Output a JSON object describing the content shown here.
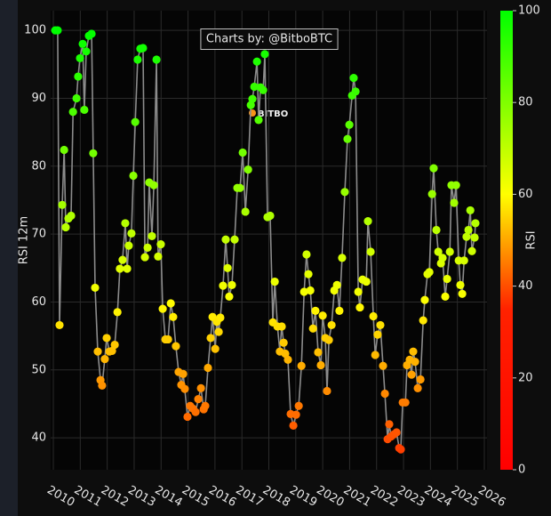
{
  "chart_data": {
    "type": "line",
    "y_label": "RSI 12m",
    "annotation": "Charts by: @BitboBTC",
    "watermark": "BITBO",
    "line_color": "#8c8c8c",
    "colorbar_title": "RSI",
    "clim": [
      0,
      100
    ],
    "colorbar_ticks": [
      0,
      20,
      40,
      60,
      80,
      100
    ],
    "colorscale": [
      [
        0,
        "#ff0000"
      ],
      [
        0.35,
        "#ff2200"
      ],
      [
        0.6,
        "#ffff00"
      ],
      [
        1,
        "#00ff00"
      ]
    ],
    "grid": true,
    "xlim": [
      2009.9,
      2026.1
    ],
    "xticks": [
      2010,
      2011,
      2012,
      2013,
      2014,
      2015,
      2016,
      2017,
      2018,
      2019,
      2020,
      2021,
      2022,
      2023,
      2024,
      2025,
      2026
    ],
    "ylim": [
      35.3,
      102.9
    ],
    "yticks": [
      40,
      50,
      60,
      70,
      80,
      90,
      100
    ],
    "x": [
      2010.07,
      2010.16,
      2010.23,
      2010.33,
      2010.4,
      2010.46,
      2010.56,
      2010.66,
      2010.73,
      2010.86,
      2010.92,
      2010.99,
      2011.09,
      2011.15,
      2011.22,
      2011.32,
      2011.42,
      2011.48,
      2011.55,
      2011.65,
      2011.75,
      2011.81,
      2011.91,
      2011.98,
      2012.08,
      2012.18,
      2012.28,
      2012.38,
      2012.47,
      2012.57,
      2012.67,
      2012.74,
      2012.8,
      2012.9,
      2012.97,
      2013.04,
      2013.13,
      2013.23,
      2013.33,
      2013.4,
      2013.5,
      2013.56,
      2013.66,
      2013.73,
      2013.83,
      2013.89,
      2013.99,
      2014.06,
      2014.16,
      2014.26,
      2014.36,
      2014.45,
      2014.55,
      2014.65,
      2014.75,
      2014.82,
      2014.88,
      2014.98,
      2015.08,
      2015.18,
      2015.28,
      2015.38,
      2015.48,
      2015.58,
      2015.64,
      2015.74,
      2015.84,
      2015.91,
      2016.01,
      2016.07,
      2016.14,
      2016.2,
      2016.3,
      2016.4,
      2016.47,
      2016.53,
      2016.63,
      2016.73,
      2016.83,
      2016.93,
      2017.03,
      2017.13,
      2017.23,
      2017.33,
      2017.39,
      2017.46,
      2017.56,
      2017.62,
      2017.69,
      2017.79,
      2017.85,
      2017.95,
      2018.05,
      2018.15,
      2018.22,
      2018.32,
      2018.41,
      2018.48,
      2018.55,
      2018.61,
      2018.71,
      2018.81,
      2018.91,
      2019.01,
      2019.11,
      2019.21,
      2019.31,
      2019.4,
      2019.47,
      2019.54,
      2019.64,
      2019.73,
      2019.83,
      2019.93,
      2020.0,
      2020.1,
      2020.16,
      2020.23,
      2020.33,
      2020.43,
      2020.53,
      2020.62,
      2020.72,
      2020.82,
      2020.92,
      2020.99,
      2021.09,
      2021.15,
      2021.22,
      2021.32,
      2021.38,
      2021.48,
      2021.62,
      2021.68,
      2021.78,
      2021.88,
      2021.95,
      2022.04,
      2022.14,
      2022.24,
      2022.31,
      2022.41,
      2022.47,
      2022.54,
      2022.64,
      2022.74,
      2022.84,
      2022.9,
      2022.97,
      2023.07,
      2023.13,
      2023.23,
      2023.3,
      2023.36,
      2023.43,
      2023.53,
      2023.63,
      2023.73,
      2023.79,
      2023.89,
      2023.96,
      2024.06,
      2024.12,
      2024.22,
      2024.29,
      2024.39,
      2024.45,
      2024.55,
      2024.62,
      2024.72,
      2024.78,
      2024.88,
      2024.95,
      2025.05,
      2025.11,
      2025.18,
      2025.25,
      2025.34,
      2025.41,
      2025.48,
      2025.54,
      2025.64,
      2025.67
    ],
    "values": [
      100,
      100,
      56.6,
      74.3,
      82.4,
      71,
      72.3,
      72.7,
      88,
      90,
      93.2,
      95.9,
      98,
      88.3,
      96.9,
      99.2,
      99.5,
      81.9,
      62.1,
      52.7,
      48.5,
      47.7,
      51.6,
      54.7,
      52.7,
      52.8,
      53.7,
      58.5,
      64.9,
      66.2,
      71.6,
      64.9,
      68.3,
      70.1,
      78.6,
      86.5,
      95.7,
      97.3,
      97.4,
      66.6,
      68,
      77.6,
      69.7,
      77.2,
      95.7,
      66.7,
      68.5,
      59,
      54.5,
      54.5,
      59.8,
      57.8,
      53.5,
      49.7,
      47.8,
      49.4,
      47.2,
      43.1,
      44.7,
      44.3,
      43.8,
      45.7,
      47.3,
      44.2,
      44.7,
      50.3,
      54.7,
      57.8,
      53.1,
      57.1,
      55.6,
      57.7,
      62.4,
      69.2,
      65,
      60.8,
      62.5,
      69.2,
      76.8,
      76.8,
      82,
      73.3,
      79.5,
      89,
      89.9,
      91.7,
      95.4,
      86.8,
      91.6,
      91.2,
      96.5,
      72.5,
      72.7,
      57,
      63,
      56.4,
      52.7,
      56.4,
      54,
      52.4,
      51.5,
      43.5,
      41.8,
      43.4,
      44.7,
      50.6,
      61.5,
      67,
      64.1,
      61.7,
      56.1,
      58.7,
      52.6,
      50.7,
      58,
      54.7,
      46.9,
      54.4,
      56.6,
      61.7,
      62.5,
      58.7,
      66.5,
      76.2,
      84,
      86.1,
      90.4,
      93,
      91,
      61.5,
      59.2,
      63.3,
      63,
      71.9,
      67.4,
      57.9,
      52.2,
      55.2,
      56.6,
      50.6,
      46.5,
      39.8,
      42,
      40.2,
      40.5,
      40.8,
      38.5,
      38.3,
      45.2,
      45.2,
      50.7,
      51.5,
      49.3,
      52.7,
      51.2,
      47.3,
      48.6,
      57.3,
      60.3,
      64.1,
      64.4,
      75.9,
      79.7,
      70.6,
      67.4,
      65.7,
      66.5,
      60.8,
      63.4,
      67.4,
      77.2,
      74.6,
      77.2,
      66.1,
      62.5,
      61.2,
      66.1,
      69.6,
      70.6,
      73.5,
      67.5,
      69.5,
      71.6
    ]
  }
}
